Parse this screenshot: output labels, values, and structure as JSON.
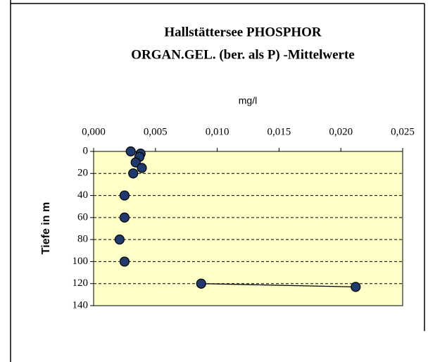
{
  "chart_data": {
    "type": "scatter",
    "title": [
      "Hallstättersee PHOSPHOR",
      "ORGAN.GEL.  (ber. als P) -Mittelwerte"
    ],
    "xlabel": "mg/l",
    "ylabel": "Tiefe in m",
    "xlim": [
      0,
      0.025
    ],
    "xticks": [
      {
        "value": 0,
        "label": "0,000"
      },
      {
        "value": 0.005,
        "label": "0,005"
      },
      {
        "value": 0.01,
        "label": "0,010"
      },
      {
        "value": 0.015,
        "label": "0,015"
      },
      {
        "value": 0.02,
        "label": "0,020"
      },
      {
        "value": 0.025,
        "label": "0,025"
      }
    ],
    "ylim": [
      0,
      140
    ],
    "y_inverted": true,
    "yticks": [
      0,
      20,
      40,
      60,
      80,
      100,
      120,
      140
    ],
    "grid": true,
    "plot_background": "#ffffc8",
    "series": [
      {
        "color": "#1f3a6e",
        "line": false,
        "x": [
          0.003,
          0.0038,
          0.0037,
          0.0034,
          0.0039,
          0.0032,
          0.0025,
          0.0025,
          0.0021,
          0.0025
        ],
        "y": [
          0,
          2,
          5,
          10,
          15,
          20,
          40,
          60,
          80,
          100
        ]
      },
      {
        "color": "#1f3a6e",
        "line": true,
        "x": [
          0.0087,
          0.0212
        ],
        "y": [
          120,
          123
        ]
      }
    ]
  }
}
